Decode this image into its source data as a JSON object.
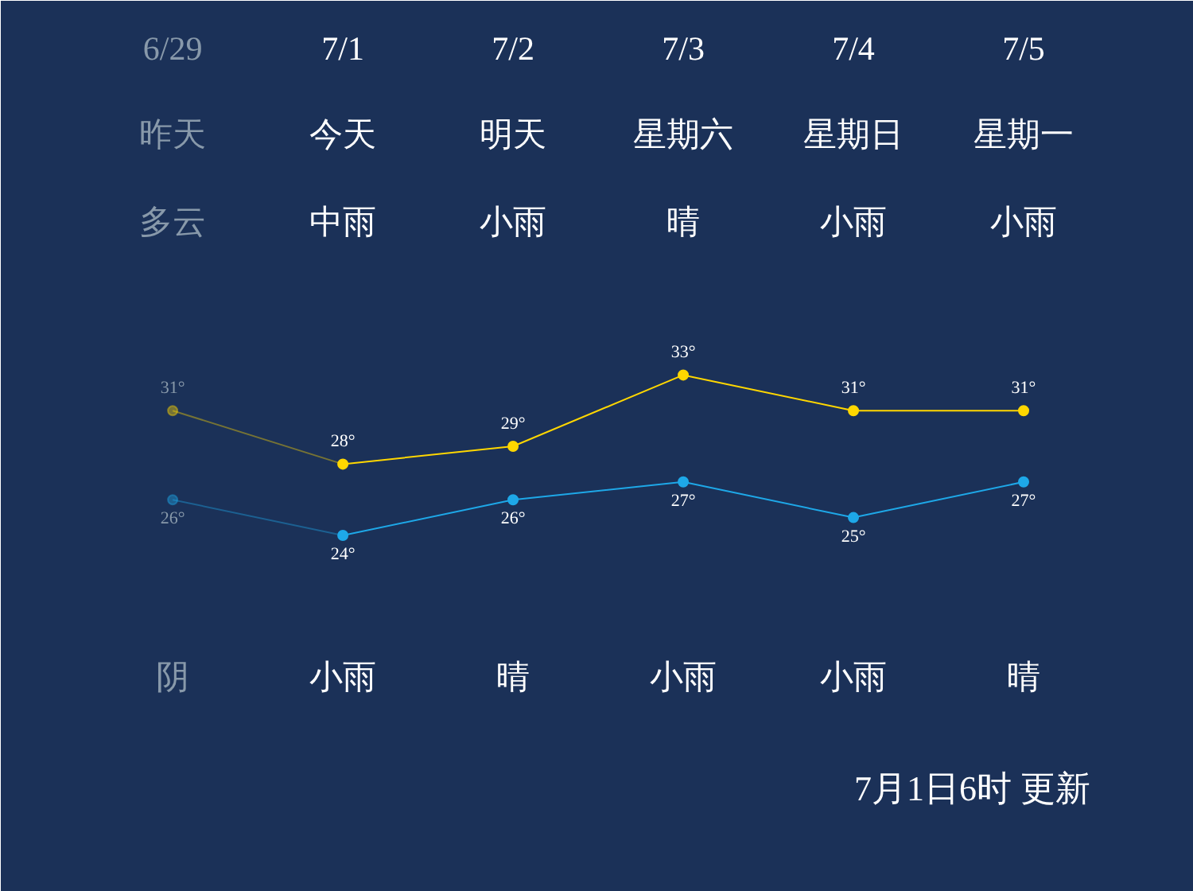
{
  "chart_data": {
    "type": "line",
    "categories": [
      "6/29",
      "7/1",
      "7/2",
      "7/3",
      "7/4",
      "7/5"
    ],
    "series": [
      {
        "color": "#ffd700",
        "values": [
          31,
          28,
          29,
          33,
          31,
          31
        ],
        "value_labels": [
          "31°",
          "28°",
          "29°",
          "33°",
          "31°",
          "31°"
        ]
      },
      {
        "color": "#1ea8e8",
        "values": [
          26,
          24,
          26,
          27,
          25,
          27
        ],
        "value_labels": [
          "26°",
          "24°",
          "26°",
          "27°",
          "25°",
          "27°"
        ]
      }
    ],
    "ylim": [
      4,
      54
    ],
    "tick_labels": false,
    "grid": false,
    "marker": "circle",
    "line_style": "solid",
    "annotations": [
      "昨天",
      "今天",
      "明天",
      "星期六",
      "星期日",
      "星期一",
      "多云",
      "中雨",
      "小雨",
      "晴",
      "小雨",
      "小雨",
      "阴",
      "小雨",
      "晴",
      "小雨",
      "小雨",
      "晴",
      "7月1日6时 更新"
    ]
  }
}
